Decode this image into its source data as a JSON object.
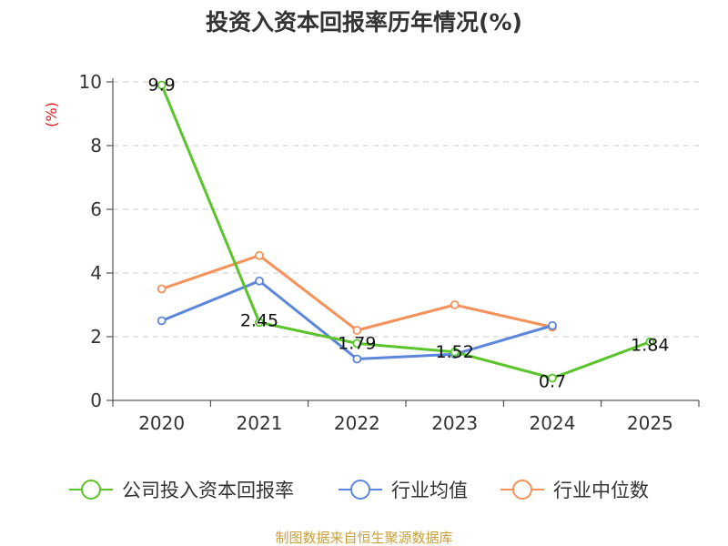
{
  "chart_data": {
    "type": "line",
    "title": "投资入资本回报率历年情况(%)",
    "unit": "(%)",
    "categories": [
      "2020",
      "2021",
      "2022",
      "2023",
      "2024",
      "2025"
    ],
    "ylim": [
      0,
      10
    ],
    "yticks": [
      0,
      2,
      4,
      6,
      8,
      10
    ],
    "grid": true,
    "legend_position": "bottom",
    "series": [
      {
        "name": "公司投入资本回报率",
        "color": "#5bc42a",
        "values": [
          9.9,
          2.45,
          1.79,
          1.52,
          0.7,
          1.84
        ],
        "labels": [
          "9.9",
          "2.45",
          "1.79",
          "1.52",
          "0.7",
          "1.84"
        ]
      },
      {
        "name": "行业均值",
        "color": "#5b86dc",
        "values": [
          2.5,
          3.75,
          1.3,
          1.45,
          2.35,
          null
        ]
      },
      {
        "name": "行业中位数",
        "color": "#f5915a",
        "values": [
          3.5,
          4.55,
          2.2,
          3.0,
          2.3,
          null
        ]
      }
    ],
    "source": "制图数据来自恒生聚源数据库"
  }
}
